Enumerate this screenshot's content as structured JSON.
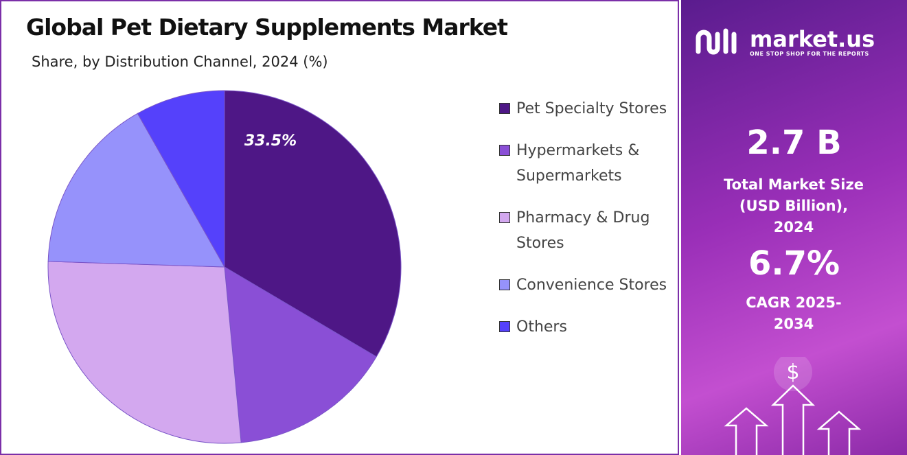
{
  "chart_data": {
    "type": "pie",
    "title": "Global Pet Dietary Supplements Market",
    "subtitle": "Share, by Distribution Channel, 2024 (%)",
    "categories": [
      "Pet Specialty Stores",
      "Hypermarkets & Supermarkets",
      "Pharmacy & Drug Stores",
      "Convenience Stores",
      "Others"
    ],
    "values": [
      33.5,
      15.0,
      27.0,
      16.3,
      8.2
    ],
    "value_labels": [
      "33.5%",
      null,
      null,
      null,
      null
    ],
    "colors": [
      "#4e1786",
      "#8a4fd6",
      "#d3a8ef",
      "#9692fb",
      "#5541fb"
    ]
  },
  "brand": {
    "name": "market.us",
    "tagline": "ONE STOP SHOP FOR THE REPORTS"
  },
  "stats": [
    {
      "value": "2.7 B",
      "label": "Total Market Size (USD Billion), 2024"
    },
    {
      "value": "6.7%",
      "label": "CAGR 2025-2034"
    }
  ]
}
